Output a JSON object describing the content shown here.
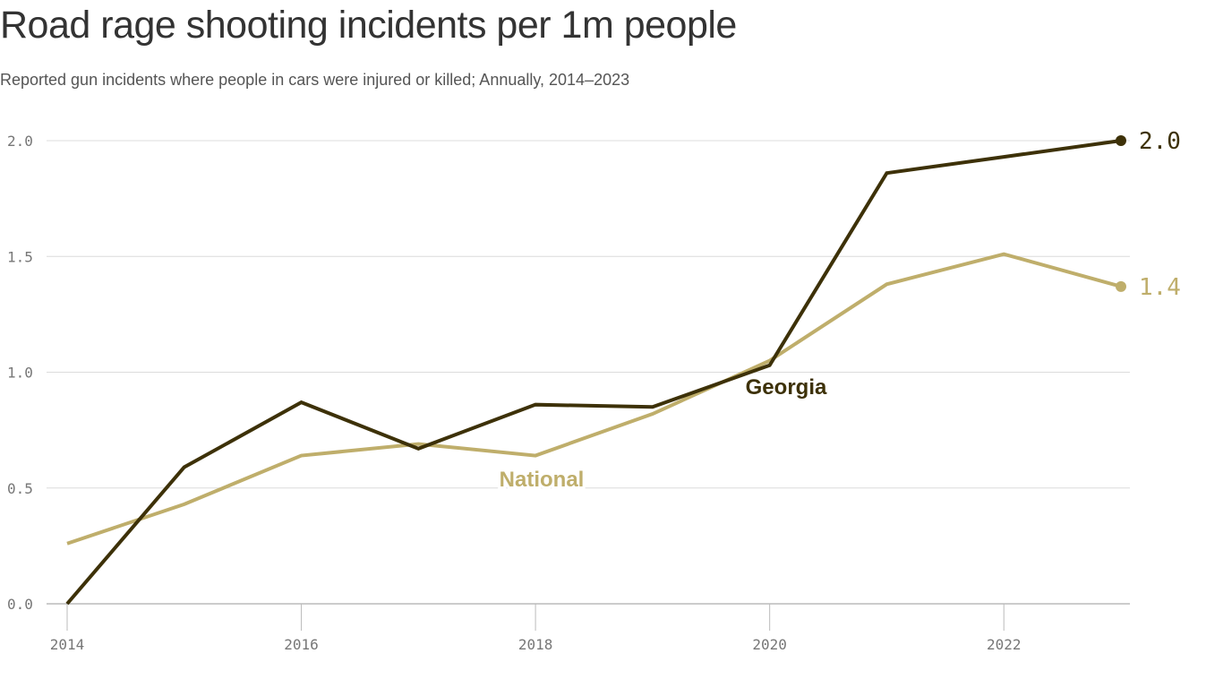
{
  "chart_data": {
    "type": "line",
    "title": "Road rage shooting incidents per 1m people",
    "subtitle": "Reported gun incidents where people in cars were injured or killed; Annually, 2014–2023",
    "x": [
      2014,
      2015,
      2016,
      2017,
      2018,
      2019,
      2020,
      2021,
      2022,
      2023
    ],
    "xticks": [
      "2014",
      "2016",
      "2018",
      "2020",
      "2022"
    ],
    "yticks": [
      "0.0",
      "0.5",
      "1.0",
      "1.5",
      "2.0"
    ],
    "ylim": [
      0,
      2.0
    ],
    "grid": true,
    "series": [
      {
        "name": "National",
        "color": "#bfae6b",
        "values": [
          0.26,
          0.43,
          0.64,
          0.69,
          0.64,
          0.82,
          1.05,
          1.38,
          1.51,
          1.37
        ],
        "end_label": "1.4"
      },
      {
        "name": "Georgia",
        "color": "#3d3108",
        "values": [
          0.0,
          0.59,
          0.87,
          0.67,
          0.86,
          0.85,
          1.03,
          1.86,
          1.93,
          2.0
        ],
        "end_label": "2.0"
      }
    ]
  }
}
